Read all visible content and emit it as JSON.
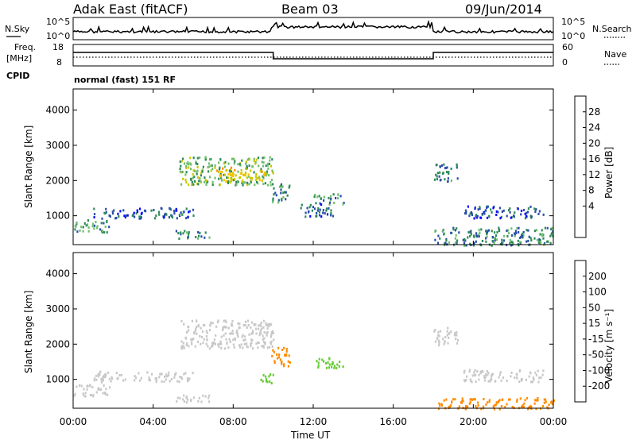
{
  "header": {
    "station": "Adak East (fitACF)",
    "beam": "Beam 03",
    "date": "09/Jun/2014"
  },
  "nsky_panel": {
    "left_label": "N.Sky",
    "right_label": "N.Search",
    "left_ticks": [
      "10^5",
      "10^0"
    ],
    "right_ticks": [
      "10^5",
      "10^0"
    ]
  },
  "freq_panel": {
    "label_line1": "Freq.",
    "label_line2": "[MHz]",
    "cpid_label": "CPID",
    "left_ticks": [
      "18",
      "8"
    ],
    "right_ticks": [
      "60",
      "0"
    ],
    "right_label": "Nave"
  },
  "cpid_text": "normal (fast) 151 RF",
  "x_axis": {
    "ticks": [
      "00:00",
      "04:00",
      "08:00",
      "12:00",
      "16:00",
      "20:00",
      "00:00"
    ],
    "label": "Time UT"
  },
  "power_colorbar": {
    "label": "Power [dB]",
    "ticks": [
      "28",
      "24",
      "20",
      "16",
      "12",
      "8",
      "4"
    ],
    "colors": [
      "#ff0000",
      "#ff4a00",
      "#ff8c00",
      "#ffc000",
      "#c8c800",
      "#6fbf6f",
      "#2e8b57",
      "#2a4faa",
      "#0000ff"
    ]
  },
  "velocity_colorbar": {
    "label": "Velocity [m s⁻¹]",
    "ticks": [
      "200",
      "100",
      "50",
      "15",
      "-15",
      "-50",
      "-100",
      "-200"
    ],
    "colors": [
      "#0000c0",
      "#2a4faa",
      "#2e8b57",
      "#66cc33",
      "#c8c8c8",
      "#ffcc33",
      "#ff8c00",
      "#ff4a00",
      "#ff0000"
    ]
  },
  "chart_data": [
    {
      "type": "heatmap",
      "title": "Power",
      "ylabel": "Slant Range [km]",
      "xlabel": "Time UT",
      "xlim_hours": [
        0,
        24
      ],
      "ylim_km": [
        180,
        4600
      ],
      "yticks": [
        "4000",
        "3000",
        "2000",
        "1000"
      ],
      "colorbar_label": "Power [dB]",
      "regions": [
        {
          "t0": 5.3,
          "t1": 10.0,
          "r0": 1900,
          "r1": 2700,
          "v": 12
        },
        {
          "t0": 7.0,
          "t1": 9.6,
          "r0": 2000,
          "r1": 2400,
          "v": 18
        },
        {
          "t0": 0.0,
          "t1": 1.8,
          "r0": 550,
          "r1": 900,
          "v": 10
        },
        {
          "t0": 1.0,
          "t1": 6.0,
          "r0": 950,
          "r1": 1250,
          "v": 6
        },
        {
          "t0": 5.0,
          "t1": 6.8,
          "r0": 380,
          "r1": 600,
          "v": 9
        },
        {
          "t0": 9.9,
          "t1": 10.8,
          "r0": 1400,
          "r1": 1950,
          "v": 8
        },
        {
          "t0": 12.0,
          "t1": 13.5,
          "r0": 1350,
          "r1": 1650,
          "v": 10
        },
        {
          "t0": 11.2,
          "t1": 13.0,
          "r0": 1000,
          "r1": 1350,
          "v": 6
        },
        {
          "t0": 18.0,
          "t1": 19.2,
          "r0": 2000,
          "r1": 2500,
          "v": 7
        },
        {
          "t0": 18.0,
          "t1": 24.0,
          "r0": 180,
          "r1": 700,
          "v": 8
        },
        {
          "t0": 19.5,
          "t1": 23.5,
          "r0": 950,
          "r1": 1300,
          "v": 5
        }
      ]
    },
    {
      "type": "heatmap",
      "title": "Velocity",
      "ylabel": "Slant Range [km]",
      "xlabel": "Time UT",
      "xlim_hours": [
        0,
        24
      ],
      "ylim_km": [
        180,
        4600
      ],
      "yticks": [
        "4000",
        "3000",
        "2000",
        "1000"
      ],
      "colorbar_label": "Velocity [m s⁻¹]",
      "regions": [
        {
          "t0": 5.3,
          "t1": 10.0,
          "r0": 1900,
          "r1": 2700,
          "v": 0
        },
        {
          "t0": 0.0,
          "t1": 1.8,
          "r0": 550,
          "r1": 900,
          "v": 0
        },
        {
          "t0": 1.0,
          "t1": 6.0,
          "r0": 950,
          "r1": 1250,
          "v": 0
        },
        {
          "t0": 5.0,
          "t1": 6.8,
          "r0": 380,
          "r1": 600,
          "v": 0
        },
        {
          "t0": 9.9,
          "t1": 10.8,
          "r0": 1400,
          "r1": 1950,
          "v": -40
        },
        {
          "t0": 12.0,
          "t1": 13.5,
          "r0": 1350,
          "r1": 1650,
          "v": 30
        },
        {
          "t0": 9.3,
          "t1": 10.0,
          "r0": 900,
          "r1": 1200,
          "v": 30
        },
        {
          "t0": 18.0,
          "t1": 19.2,
          "r0": 2000,
          "r1": 2500,
          "v": 0
        },
        {
          "t0": 18.0,
          "t1": 24.0,
          "r0": 180,
          "r1": 500,
          "v": -30
        },
        {
          "t0": 19.5,
          "t1": 23.5,
          "r0": 950,
          "r1": 1300,
          "v": 0
        }
      ]
    }
  ]
}
